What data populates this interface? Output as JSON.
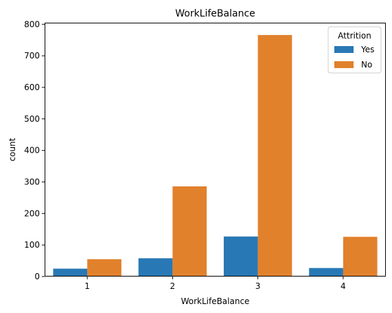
{
  "chart_data": {
    "type": "bar",
    "title": "WorkLifeBalance",
    "xlabel": "WorkLifeBalance",
    "ylabel": "count",
    "categories": [
      "1",
      "2",
      "3",
      "4"
    ],
    "series": [
      {
        "name": "Yes",
        "values": [
          25,
          58,
          127,
          27
        ],
        "color": "#2878b5"
      },
      {
        "name": "No",
        "values": [
          55,
          286,
          766,
          126
        ],
        "color": "#e1812c"
      }
    ],
    "ylim": [
      0,
      805
    ],
    "yticks": [
      0,
      100,
      200,
      300,
      400,
      500,
      600,
      700,
      800
    ],
    "legend": {
      "title": "Attrition",
      "placement": "top-right"
    },
    "grid": false
  }
}
